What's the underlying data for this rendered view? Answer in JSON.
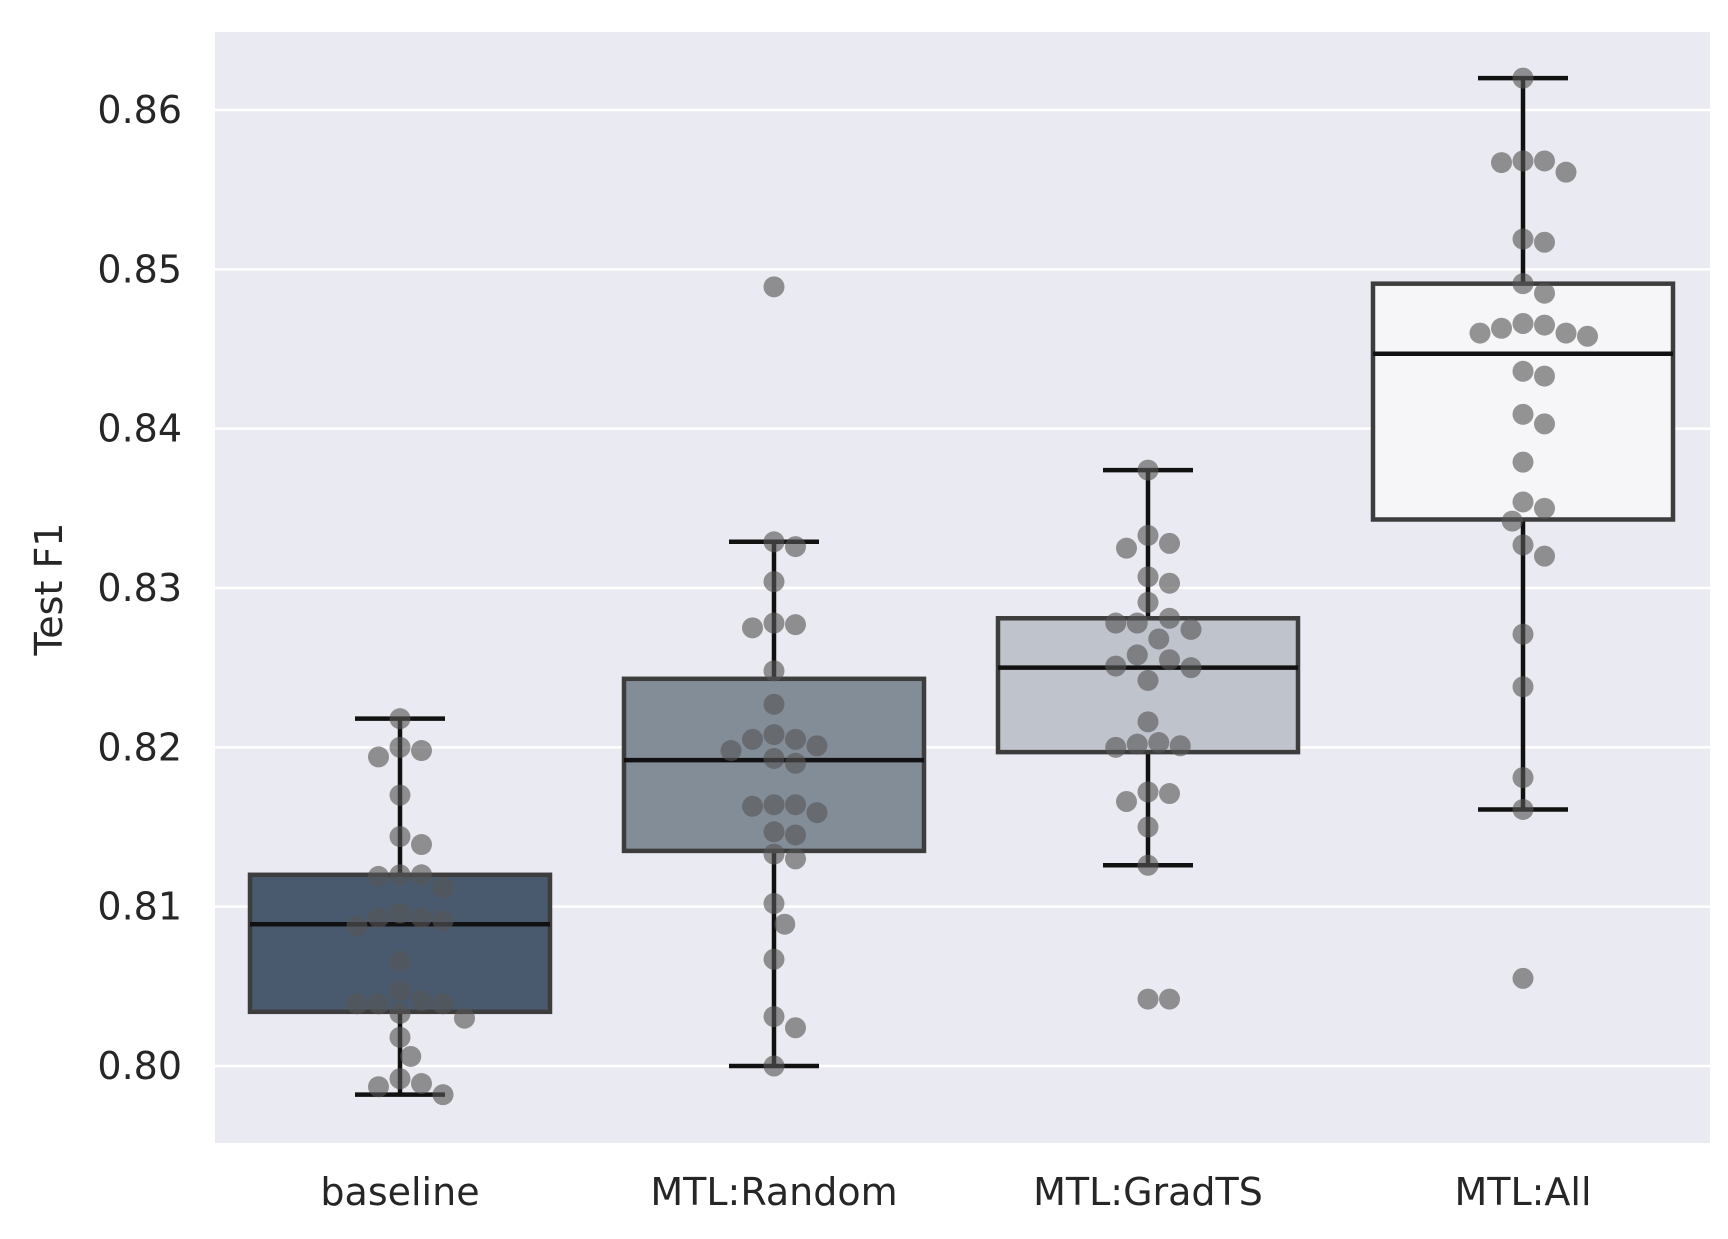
{
  "chart_data": {
    "type": "box",
    "title": "",
    "xlabel": "",
    "ylabel": "Test F1",
    "ylim": [
      0.795,
      0.865
    ],
    "yticks": [
      0.8,
      0.81,
      0.82,
      0.83,
      0.84,
      0.85,
      0.86
    ],
    "ytick_labels": [
      "0.80",
      "0.81",
      "0.82",
      "0.83",
      "0.84",
      "0.85",
      "0.86"
    ],
    "grid": true,
    "categories": [
      "baseline",
      "MTL:Random",
      "MTL:GradTS",
      "MTL:All"
    ],
    "colors": {
      "plot_background": "#eaeaf2",
      "grid": "#ffffff",
      "box_edge": "#3d3d3d",
      "whisker": "#111111",
      "point": "#555555",
      "text": "#262626"
    },
    "boxes": [
      {
        "name": "baseline",
        "fill": "#4a5a6e",
        "whisker_low": 0.7982,
        "q1": 0.8034,
        "median": 0.8089,
        "q3": 0.812,
        "whisker_high": 0.8218
      },
      {
        "name": "MTL:Random",
        "fill": "#838d98",
        "whisker_low": 0.8,
        "q1": 0.8135,
        "median": 0.8192,
        "q3": 0.8243,
        "whisker_high": 0.8329
      },
      {
        "name": "MTL:GradTS",
        "fill": "#bfc3cc",
        "whisker_low": 0.8126,
        "q1": 0.8197,
        "median": 0.825,
        "q3": 0.8281,
        "whisker_high": 0.8374
      },
      {
        "name": "MTL:All",
        "fill": "#f6f6f9",
        "whisker_low": 0.8161,
        "q1": 0.8343,
        "median": 0.8447,
        "q3": 0.8491,
        "whisker_high": 0.862
      }
    ],
    "points": [
      {
        "category": "baseline",
        "y": [
          0.8218,
          0.8198,
          0.82,
          0.8194,
          0.817,
          0.8144,
          0.8139,
          0.812,
          0.8119,
          0.812,
          0.8112,
          0.8096,
          0.8091,
          0.8093,
          0.8093,
          0.8088,
          0.8066,
          0.8047,
          0.8039,
          0.8039,
          0.8041,
          0.8039,
          0.8033,
          0.803,
          0.8018,
          0.8006,
          0.7992,
          0.7989,
          0.7987,
          0.7982
        ]
      },
      {
        "category": "MTL:Random",
        "y": [
          0.8489,
          0.8329,
          0.8326,
          0.8304,
          0.8277,
          0.8275,
          0.8278,
          0.8248,
          0.8227,
          0.8208,
          0.8205,
          0.8205,
          0.8201,
          0.8198,
          0.8193,
          0.819,
          0.8164,
          0.8159,
          0.8163,
          0.8164,
          0.8147,
          0.8145,
          0.8133,
          0.813,
          0.8102,
          0.8089,
          0.8067,
          0.8031,
          0.8024,
          0.8
        ]
      },
      {
        "category": "MTL:GradTS",
        "y": [
          0.8374,
          0.8328,
          0.8333,
          0.8325,
          0.8307,
          0.8303,
          0.8291,
          0.8278,
          0.8278,
          0.8281,
          0.8274,
          0.8268,
          0.8258,
          0.8255,
          0.825,
          0.8251,
          0.8242,
          0.8216,
          0.8203,
          0.8201,
          0.82,
          0.8202,
          0.8171,
          0.8172,
          0.8166,
          0.815,
          0.8126,
          0.8042,
          0.8042
        ]
      },
      {
        "category": "MTL:All",
        "y": [
          0.862,
          0.8567,
          0.8561,
          0.8568,
          0.8568,
          0.8519,
          0.8517,
          0.8491,
          0.8485,
          0.8463,
          0.846,
          0.8458,
          0.846,
          0.8465,
          0.8466,
          0.8436,
          0.8433,
          0.8409,
          0.8403,
          0.8379,
          0.8354,
          0.835,
          0.8342,
          0.8327,
          0.832,
          0.8271,
          0.8238,
          0.8181,
          0.8161,
          0.8055
        ]
      }
    ]
  }
}
